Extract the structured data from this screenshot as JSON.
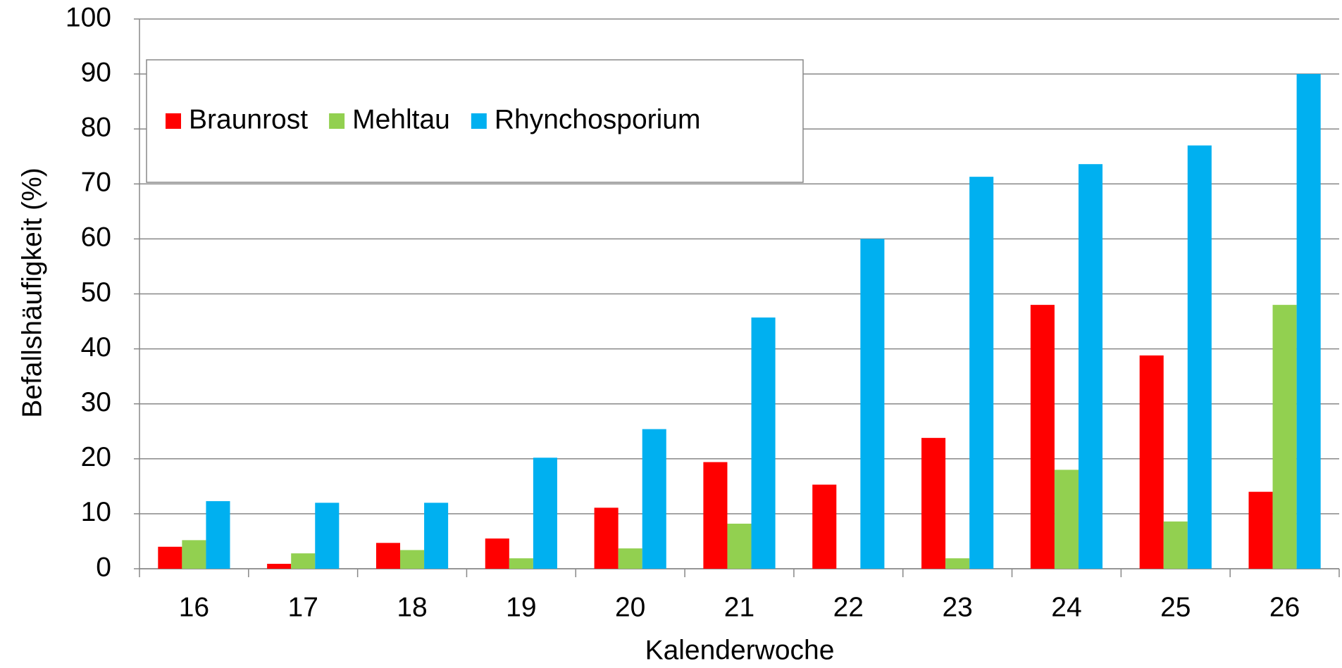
{
  "chart_data": {
    "type": "bar",
    "x_label": "Kalenderwoche",
    "y_label": "Befallshäufigkeit (%)",
    "categories": [
      "16",
      "17",
      "18",
      "19",
      "20",
      "21",
      "22",
      "23",
      "24",
      "25",
      "26"
    ],
    "series": [
      {
        "name": "Braunrost",
        "color": "#ff0000",
        "values": [
          4,
          0.9,
          4.7,
          5.5,
          11.1,
          19.4,
          15.3,
          23.8,
          48,
          38.8,
          14
        ]
      },
      {
        "name": "Mehltau",
        "color": "#92d050",
        "values": [
          5.2,
          2.8,
          3.4,
          1.9,
          3.7,
          8.2,
          0,
          1.9,
          18,
          8.6,
          48
        ]
      },
      {
        "name": "Rhynchosporium",
        "color": "#00b0f0",
        "values": [
          12.3,
          12,
          12,
          20.2,
          25.4,
          45.7,
          60,
          71.3,
          73.6,
          77,
          90
        ]
      }
    ],
    "ylim": [
      0,
      100
    ],
    "yticks": [
      0,
      10,
      20,
      30,
      40,
      50,
      60,
      70,
      80,
      90,
      100
    ],
    "grid": true,
    "legend": "top-left"
  }
}
